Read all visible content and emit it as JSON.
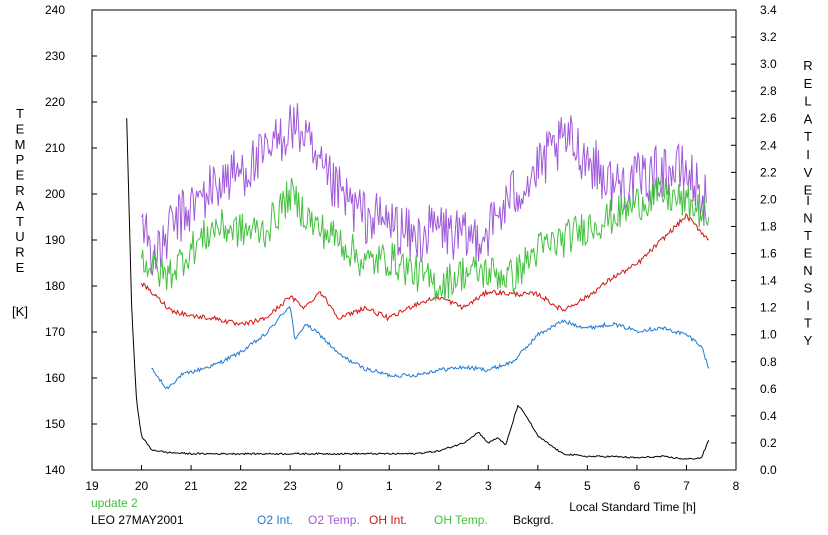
{
  "chart_data": {
    "type": "line",
    "left_axis": {
      "label_letters": [
        "T",
        "E",
        "M",
        "P",
        "E",
        "R",
        "A",
        "T",
        "U",
        "R",
        "E"
      ],
      "unit": "[K]",
      "ylim": [
        140,
        240
      ],
      "ticks": [
        140,
        150,
        160,
        170,
        180,
        190,
        200,
        210,
        220,
        230,
        240
      ]
    },
    "right_axis": {
      "label_letters_1": [
        "R",
        "E",
        "L",
        "A",
        "T",
        "I",
        "V",
        "E"
      ],
      "label_letters_2": [
        "I",
        "N",
        "T",
        "E",
        "N",
        "S",
        "I",
        "T",
        "Y"
      ],
      "ylim": [
        0.0,
        3.4
      ],
      "ticks": [
        "0.0",
        "0.2",
        "0.4",
        "0.6",
        "0.8",
        "1.0",
        "1.2",
        "1.4",
        "1.6",
        "1.8",
        "2.0",
        "2.2",
        "2.4",
        "2.6",
        "2.8",
        "3.0",
        "3.2",
        "3.4"
      ]
    },
    "x_axis": {
      "label": "Local Standard Time [h]",
      "xlim": [
        19,
        32
      ],
      "tick_labels": [
        "19",
        "20",
        "21",
        "22",
        "23",
        "0",
        "1",
        "2",
        "3",
        "4",
        "5",
        "6",
        "7",
        "8"
      ]
    },
    "grid": false,
    "series": [
      {
        "name": "O2 Int.",
        "color": "#1f7bd6",
        "axis": "right",
        "noise": 0.015,
        "points": [
          [
            20.2,
            0.75
          ],
          [
            20.5,
            0.6
          ],
          [
            20.8,
            0.7
          ],
          [
            21.5,
            0.78
          ],
          [
            22.0,
            0.87
          ],
          [
            22.5,
            1.0
          ],
          [
            23.0,
            1.22
          ],
          [
            23.1,
            0.95
          ],
          [
            23.3,
            1.08
          ],
          [
            23.6,
            1.0
          ],
          [
            24.0,
            0.85
          ],
          [
            24.5,
            0.75
          ],
          [
            25.0,
            0.7
          ],
          [
            25.5,
            0.7
          ],
          [
            26.0,
            0.74
          ],
          [
            26.5,
            0.76
          ],
          [
            27.0,
            0.74
          ],
          [
            27.5,
            0.8
          ],
          [
            28.0,
            1.0
          ],
          [
            28.5,
            1.1
          ],
          [
            29.0,
            1.05
          ],
          [
            29.5,
            1.08
          ],
          [
            30.0,
            1.03
          ],
          [
            30.5,
            1.05
          ],
          [
            31.0,
            1.0
          ],
          [
            31.3,
            0.92
          ],
          [
            31.45,
            0.75
          ]
        ]
      },
      {
        "name": "O2 Temp.",
        "color": "#9f59d9",
        "axis": "left",
        "noise": 6.0,
        "points": [
          [
            20.0,
            195
          ],
          [
            20.3,
            185
          ],
          [
            20.6,
            193
          ],
          [
            21.0,
            197
          ],
          [
            21.5,
            202
          ],
          [
            22.0,
            205
          ],
          [
            22.5,
            208
          ],
          [
            23.0,
            215
          ],
          [
            23.3,
            213
          ],
          [
            23.5,
            206
          ],
          [
            24.0,
            200
          ],
          [
            24.5,
            195
          ],
          [
            25.0,
            194
          ],
          [
            25.5,
            190
          ],
          [
            26.0,
            193
          ],
          [
            26.5,
            190
          ],
          [
            27.0,
            192
          ],
          [
            27.5,
            200
          ],
          [
            28.0,
            205
          ],
          [
            28.2,
            208
          ],
          [
            28.6,
            212
          ],
          [
            29.0,
            208
          ],
          [
            29.5,
            202
          ],
          [
            30.0,
            203
          ],
          [
            30.5,
            205
          ],
          [
            31.0,
            205
          ],
          [
            31.4,
            198
          ]
        ]
      },
      {
        "name": "OH Int.",
        "color": "#d21414",
        "axis": "right",
        "noise": 0.018,
        "points": [
          [
            20.0,
            1.38
          ],
          [
            20.3,
            1.28
          ],
          [
            20.6,
            1.18
          ],
          [
            21.0,
            1.14
          ],
          [
            21.5,
            1.12
          ],
          [
            22.0,
            1.07
          ],
          [
            22.5,
            1.12
          ],
          [
            23.0,
            1.28
          ],
          [
            23.3,
            1.2
          ],
          [
            23.6,
            1.32
          ],
          [
            24.0,
            1.12
          ],
          [
            24.5,
            1.2
          ],
          [
            25.0,
            1.12
          ],
          [
            25.5,
            1.22
          ],
          [
            26.0,
            1.28
          ],
          [
            26.5,
            1.2
          ],
          [
            27.0,
            1.32
          ],
          [
            27.5,
            1.3
          ],
          [
            28.0,
            1.3
          ],
          [
            28.5,
            1.18
          ],
          [
            29.0,
            1.28
          ],
          [
            29.5,
            1.42
          ],
          [
            30.0,
            1.52
          ],
          [
            30.5,
            1.7
          ],
          [
            31.0,
            1.88
          ],
          [
            31.45,
            1.7
          ]
        ]
      },
      {
        "name": "OH Temp.",
        "color": "#45c040",
        "axis": "left",
        "noise": 4.0,
        "points": [
          [
            20.0,
            186
          ],
          [
            20.5,
            182
          ],
          [
            21.0,
            188
          ],
          [
            21.5,
            193
          ],
          [
            22.0,
            192
          ],
          [
            22.5,
            192
          ],
          [
            23.0,
            200
          ],
          [
            23.5,
            193
          ],
          [
            24.0,
            190
          ],
          [
            24.5,
            185
          ],
          [
            25.0,
            186
          ],
          [
            25.5,
            183
          ],
          [
            26.0,
            180
          ],
          [
            26.5,
            183
          ],
          [
            27.0,
            183
          ],
          [
            27.5,
            182
          ],
          [
            28.0,
            188
          ],
          [
            28.5,
            190
          ],
          [
            29.0,
            193
          ],
          [
            29.5,
            195
          ],
          [
            30.0,
            198
          ],
          [
            30.5,
            200
          ],
          [
            31.0,
            198
          ],
          [
            31.45,
            195
          ]
        ]
      },
      {
        "name": "Bckgrd.",
        "color": "#000000",
        "axis": "right",
        "noise": 0.006,
        "points": [
          [
            19.7,
            2.6
          ],
          [
            19.8,
            1.2
          ],
          [
            19.9,
            0.5
          ],
          [
            20.0,
            0.25
          ],
          [
            20.2,
            0.15
          ],
          [
            20.5,
            0.13
          ],
          [
            21.0,
            0.12
          ],
          [
            21.5,
            0.12
          ],
          [
            22.0,
            0.12
          ],
          [
            22.5,
            0.12
          ],
          [
            23.0,
            0.12
          ],
          [
            23.5,
            0.12
          ],
          [
            24.0,
            0.12
          ],
          [
            24.5,
            0.12
          ],
          [
            25.0,
            0.12
          ],
          [
            25.5,
            0.12
          ],
          [
            26.0,
            0.14
          ],
          [
            26.5,
            0.2
          ],
          [
            26.8,
            0.28
          ],
          [
            27.0,
            0.2
          ],
          [
            27.2,
            0.24
          ],
          [
            27.35,
            0.18
          ],
          [
            27.6,
            0.48
          ],
          [
            27.8,
            0.38
          ],
          [
            28.0,
            0.25
          ],
          [
            28.5,
            0.12
          ],
          [
            29.0,
            0.1
          ],
          [
            29.5,
            0.1
          ],
          [
            30.0,
            0.09
          ],
          [
            30.5,
            0.1
          ],
          [
            31.0,
            0.08
          ],
          [
            31.3,
            0.09
          ],
          [
            31.45,
            0.22
          ]
        ]
      }
    ]
  },
  "footer": {
    "update_label": "update 2",
    "station_label": "LEO 27MAY2001"
  }
}
